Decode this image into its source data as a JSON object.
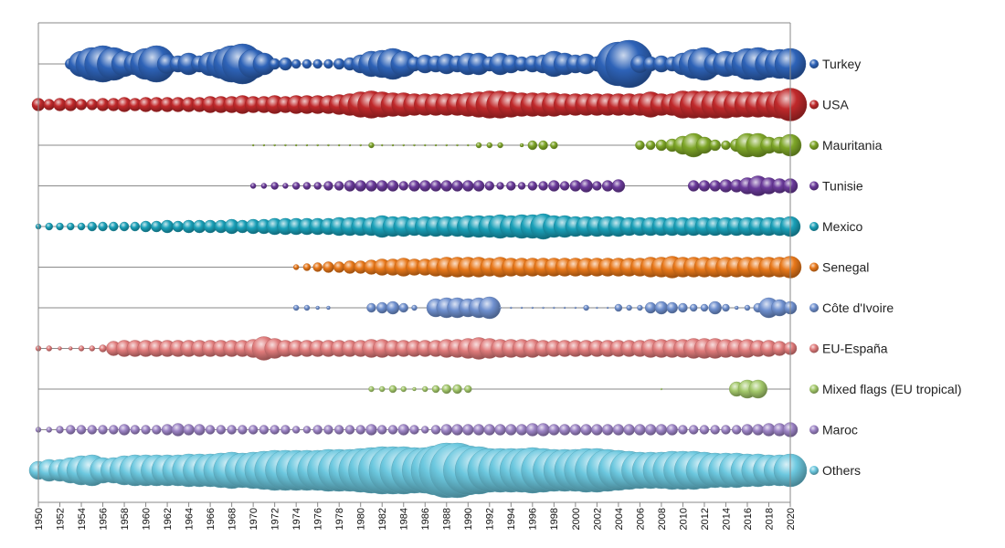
{
  "chart_data": {
    "type": "bubble-strip",
    "title": "",
    "xlabel": "",
    "ylabel": "",
    "x_range": [
      1950,
      2020
    ],
    "x_ticks": [
      "1950",
      "1952",
      "1954",
      "1956",
      "1958",
      "1960",
      "1962",
      "1964",
      "1966",
      "1968",
      "1970",
      "1972",
      "1974",
      "1976",
      "1978",
      "1980",
      "1982",
      "1984",
      "1986",
      "1988",
      "1990",
      "1992",
      "1994",
      "1996",
      "1998",
      "2000",
      "2002",
      "2004",
      "2006",
      "2008",
      "2010",
      "2012",
      "2014",
      "2016",
      "2018",
      "2020"
    ],
    "legend_position": "right",
    "grid": false,
    "series": [
      {
        "name": "Turkey",
        "color": "#2e63b8",
        "start": 1953,
        "segments": [
          [
            1950,
            1952,
            0
          ],
          [
            1953,
            1953,
            6
          ],
          [
            1954,
            1954,
            14
          ],
          [
            1955,
            1955,
            18
          ],
          [
            1956,
            1956,
            20
          ],
          [
            1957,
            1957,
            18
          ],
          [
            1958,
            1958,
            14
          ],
          [
            1959,
            1959,
            12
          ],
          [
            1960,
            1960,
            17
          ],
          [
            1961,
            1961,
            20
          ],
          [
            1962,
            1962,
            11
          ],
          [
            1963,
            1963,
            9
          ],
          [
            1964,
            1964,
            12
          ],
          [
            1965,
            1965,
            9
          ],
          [
            1966,
            1966,
            13
          ],
          [
            1967,
            1967,
            16
          ],
          [
            1968,
            1968,
            20
          ],
          [
            1969,
            1969,
            22
          ],
          [
            1970,
            1970,
            16
          ],
          [
            1971,
            1971,
            12
          ],
          [
            1972,
            1972,
            6
          ],
          [
            1973,
            1973,
            7
          ],
          [
            1974,
            1974,
            5
          ],
          [
            1975,
            1975,
            5
          ],
          [
            1976,
            1976,
            5
          ],
          [
            1977,
            1977,
            5
          ],
          [
            1978,
            1978,
            6
          ],
          [
            1979,
            1979,
            7
          ],
          [
            1980,
            1980,
            10
          ],
          [
            1981,
            1981,
            14
          ],
          [
            1982,
            1982,
            15
          ],
          [
            1983,
            1983,
            17
          ],
          [
            1984,
            1984,
            14
          ],
          [
            1985,
            1985,
            8
          ],
          [
            1986,
            1986,
            10
          ],
          [
            1987,
            1987,
            9
          ],
          [
            1988,
            1988,
            11
          ],
          [
            1989,
            1989,
            9
          ],
          [
            1990,
            1990,
            12
          ],
          [
            1991,
            1991,
            12
          ],
          [
            1992,
            1992,
            8
          ],
          [
            1993,
            1993,
            12
          ],
          [
            1994,
            1994,
            10
          ],
          [
            1995,
            1995,
            8
          ],
          [
            1996,
            1996,
            9
          ],
          [
            1997,
            1997,
            10
          ],
          [
            1998,
            1998,
            14
          ],
          [
            1999,
            1999,
            12
          ],
          [
            2000,
            2000,
            10
          ],
          [
            2001,
            2001,
            11
          ],
          [
            2002,
            2002,
            8
          ],
          [
            2003,
            2003,
            14
          ],
          [
            2004,
            2004,
            24
          ],
          [
            2005,
            2005,
            26
          ],
          [
            2006,
            2006,
            10
          ],
          [
            2007,
            2007,
            8
          ],
          [
            2008,
            2008,
            9
          ],
          [
            2009,
            2009,
            8
          ],
          [
            2010,
            2010,
            12
          ],
          [
            2011,
            2011,
            16
          ],
          [
            2012,
            2012,
            18
          ],
          [
            2013,
            2013,
            12
          ],
          [
            2014,
            2014,
            14
          ],
          [
            2015,
            2015,
            13
          ],
          [
            2016,
            2016,
            17
          ],
          [
            2017,
            2017,
            18
          ],
          [
            2018,
            2018,
            15
          ],
          [
            2019,
            2019,
            16
          ],
          [
            2020,
            2020,
            17
          ]
        ]
      },
      {
        "name": "USA",
        "color": "#c0292b",
        "start": 1950,
        "sizes": {
          "1950": 7,
          "1951": 6,
          "1952": 7,
          "1953": 7,
          "1954": 6,
          "1955": 6,
          "1956": 7,
          "1957": 7,
          "1958": 8,
          "1959": 7,
          "1960": 8,
          "1961": 8,
          "1962": 8,
          "1963": 8,
          "1964": 8,
          "1965": 8,
          "1966": 9,
          "1967": 9,
          "1968": 9,
          "1969": 10,
          "1970": 9,
          "1971": 9,
          "1972": 10,
          "1973": 9,
          "1974": 10,
          "1975": 10,
          "1976": 10,
          "1977": 10,
          "1978": 11,
          "1979": 12,
          "1980": 14,
          "1981": 15,
          "1982": 14,
          "1983": 13,
          "1984": 13,
          "1985": 12,
          "1986": 12,
          "1987": 12,
          "1988": 12,
          "1989": 12,
          "1990": 13,
          "1991": 14,
          "1992": 15,
          "1993": 15,
          "1994": 14,
          "1995": 13,
          "1996": 13,
          "1997": 13,
          "1998": 13,
          "1999": 12,
          "2000": 12,
          "2001": 12,
          "2002": 12,
          "2003": 12,
          "2004": 12,
          "2005": 12,
          "2006": 12,
          "2007": 14,
          "2008": 12,
          "2009": 12,
          "2010": 15,
          "2011": 15,
          "2012": 15,
          "2013": 15,
          "2014": 15,
          "2015": 14,
          "2016": 14,
          "2017": 14,
          "2018": 14,
          "2019": 15,
          "2020": 18
        }
      },
      {
        "name": "Mauritania",
        "color": "#7ea628",
        "start": 1970,
        "sizes": {
          "1970": 1,
          "1971": 1,
          "1972": 1,
          "1973": 1,
          "1974": 1,
          "1975": 1,
          "1976": 1,
          "1977": 1,
          "1978": 1,
          "1979": 1,
          "1980": 1,
          "1981": 3,
          "1982": 1,
          "1983": 1,
          "1984": 1,
          "1985": 1,
          "1986": 1,
          "1987": 1,
          "1988": 1,
          "1989": 1,
          "1990": 1,
          "1991": 3,
          "1992": 3,
          "1993": 3,
          "1994": 0,
          "1995": 2,
          "1996": 5,
          "1997": 5,
          "1998": 4,
          "1999": 0,
          "2000": 0,
          "2001": 0,
          "2002": 0,
          "2003": 0,
          "2004": 0,
          "2005": 0,
          "2006": 5,
          "2007": 5,
          "2008": 6,
          "2009": 7,
          "2010": 10,
          "2011": 13,
          "2012": 9,
          "2013": 6,
          "2014": 5,
          "2015": 7,
          "2016": 13,
          "2017": 13,
          "2018": 9,
          "2019": 9,
          "2020": 12
        }
      },
      {
        "name": "Tunisie",
        "color": "#6a3a9a",
        "start": 1970,
        "sizes": {
          "1970": 3,
          "1971": 3,
          "1972": 4,
          "1973": 3,
          "1974": 4,
          "1975": 4,
          "1976": 4,
          "1977": 5,
          "1978": 5,
          "1979": 6,
          "1980": 6,
          "1981": 6,
          "1982": 6,
          "1983": 6,
          "1984": 5,
          "1985": 6,
          "1986": 6,
          "1987": 6,
          "1988": 6,
          "1989": 6,
          "1990": 6,
          "1991": 6,
          "1992": 5,
          "1993": 4,
          "1994": 5,
          "1995": 4,
          "1996": 5,
          "1997": 5,
          "1998": 6,
          "1999": 5,
          "2000": 6,
          "2001": 7,
          "2002": 5,
          "2003": 6,
          "2004": 7,
          "2005": 0,
          "2006": 0,
          "2007": 0,
          "2008": 0,
          "2009": 0,
          "2010": 0,
          "2011": 6,
          "2012": 6,
          "2013": 6,
          "2014": 7,
          "2015": 7,
          "2016": 9,
          "2017": 11,
          "2018": 9,
          "2019": 8,
          "2020": 8
        }
      },
      {
        "name": "Mexico",
        "color": "#1aa0b8",
        "start": 1950,
        "sizes": {
          "1950": 3,
          "1951": 4,
          "1952": 4,
          "1953": 4,
          "1954": 4,
          "1955": 5,
          "1956": 5,
          "1957": 5,
          "1958": 5,
          "1959": 5,
          "1960": 6,
          "1961": 6,
          "1962": 7,
          "1963": 6,
          "1964": 7,
          "1965": 7,
          "1966": 7,
          "1967": 7,
          "1968": 8,
          "1969": 7,
          "1970": 8,
          "1971": 8,
          "1972": 9,
          "1973": 9,
          "1974": 9,
          "1975": 9,
          "1976": 9,
          "1977": 9,
          "1978": 10,
          "1979": 10,
          "1980": 10,
          "1981": 10,
          "1982": 12,
          "1983": 11,
          "1984": 11,
          "1985": 10,
          "1986": 11,
          "1987": 11,
          "1988": 11,
          "1989": 11,
          "1990": 12,
          "1991": 12,
          "1992": 12,
          "1993": 13,
          "1994": 12,
          "1995": 13,
          "1996": 13,
          "1997": 14,
          "1998": 12,
          "1999": 12,
          "2000": 11,
          "2001": 11,
          "2002": 11,
          "2003": 11,
          "2004": 11,
          "2005": 10,
          "2006": 10,
          "2007": 10,
          "2008": 10,
          "2009": 10,
          "2010": 10,
          "2011": 10,
          "2012": 10,
          "2013": 10,
          "2014": 10,
          "2015": 10,
          "2016": 10,
          "2017": 10,
          "2018": 10,
          "2019": 10,
          "2020": 11
        }
      },
      {
        "name": "Senegal",
        "color": "#e8781a",
        "start": 1974,
        "sizes": {
          "1974": 3,
          "1975": 4,
          "1976": 5,
          "1977": 6,
          "1978": 6,
          "1979": 7,
          "1980": 7,
          "1981": 8,
          "1982": 9,
          "1983": 9,
          "1984": 10,
          "1985": 9,
          "1986": 9,
          "1987": 10,
          "1988": 11,
          "1989": 11,
          "1990": 11,
          "1991": 11,
          "1992": 10,
          "1993": 11,
          "1994": 10,
          "1995": 10,
          "1996": 10,
          "1997": 10,
          "1998": 10,
          "1999": 10,
          "2000": 10,
          "2001": 10,
          "2002": 10,
          "2003": 10,
          "2004": 10,
          "2005": 10,
          "2006": 10,
          "2007": 11,
          "2008": 11,
          "2009": 12,
          "2010": 11,
          "2011": 11,
          "2012": 11,
          "2013": 11,
          "2014": 11,
          "2015": 11,
          "2016": 11,
          "2017": 11,
          "2018": 11,
          "2019": 11,
          "2020": 12
        }
      },
      {
        "name": "Côte d'Ivoire",
        "color": "#6f90cf",
        "start": 1974,
        "sizes": {
          "1974": 3,
          "1975": 3,
          "1976": 2,
          "1977": 2,
          "1978": 0,
          "1979": 0,
          "1980": 0,
          "1981": 5,
          "1982": 6,
          "1983": 7,
          "1984": 5,
          "1985": 3,
          "1986": 0,
          "1987": 10,
          "1988": 11,
          "1989": 11,
          "1990": 10,
          "1991": 11,
          "1992": 12,
          "1993": 1,
          "1994": 1,
          "1995": 1,
          "1996": 1,
          "1997": 1,
          "1998": 1,
          "1999": 1,
          "2000": 1,
          "2001": 3,
          "2002": 1,
          "2003": 1,
          "2004": 4,
          "2005": 3,
          "2006": 3,
          "2007": 6,
          "2008": 7,
          "2009": 6,
          "2010": 5,
          "2011": 4,
          "2012": 4,
          "2013": 7,
          "2014": 4,
          "2015": 2,
          "2016": 3,
          "2017": 5,
          "2018": 11,
          "2019": 9,
          "2020": 7
        }
      },
      {
        "name": "EU-España",
        "color": "#e07b7b",
        "start": 1950,
        "sizes": {
          "1950": 3,
          "1951": 3,
          "1952": 2,
          "1953": 2,
          "1954": 3,
          "1955": 3,
          "1956": 4,
          "1957": 8,
          "1958": 9,
          "1959": 9,
          "1960": 9,
          "1961": 9,
          "1962": 9,
          "1963": 9,
          "1964": 9,
          "1965": 9,
          "1966": 9,
          "1967": 9,
          "1968": 9,
          "1969": 9,
          "1970": 10,
          "1971": 13,
          "1972": 11,
          "1973": 9,
          "1974": 9,
          "1975": 9,
          "1976": 9,
          "1977": 9,
          "1978": 9,
          "1979": 9,
          "1980": 9,
          "1981": 10,
          "1982": 10,
          "1983": 9,
          "1984": 9,
          "1985": 9,
          "1986": 9,
          "1987": 9,
          "1988": 10,
          "1989": 10,
          "1990": 11,
          "1991": 12,
          "1992": 11,
          "1993": 10,
          "1994": 10,
          "1995": 10,
          "1996": 10,
          "1997": 9,
          "1998": 9,
          "1999": 9,
          "2000": 9,
          "2001": 9,
          "2002": 9,
          "2003": 9,
          "2004": 9,
          "2005": 9,
          "2006": 9,
          "2007": 10,
          "2008": 10,
          "2009": 10,
          "2010": 10,
          "2011": 11,
          "2012": 11,
          "2013": 11,
          "2014": 10,
          "2015": 10,
          "2016": 10,
          "2017": 9,
          "2018": 9,
          "2019": 8,
          "2020": 7
        }
      },
      {
        "name": "Mixed flags (EU tropical)",
        "color": "#a3c86a",
        "start": 1981,
        "sizes": {
          "1981": 3,
          "1982": 3,
          "1983": 4,
          "1984": 3,
          "1985": 2,
          "1986": 3,
          "1987": 4,
          "1988": 5,
          "1989": 5,
          "1990": 4,
          "2008": 1,
          "2015": 8,
          "2016": 10,
          "2017": 10
        }
      },
      {
        "name": "Maroc",
        "color": "#9b82c4",
        "start": 1950,
        "sizes": {
          "1950": 3,
          "1951": 3,
          "1952": 4,
          "1953": 5,
          "1954": 5,
          "1955": 5,
          "1956": 5,
          "1957": 5,
          "1958": 6,
          "1959": 5,
          "1960": 5,
          "1961": 5,
          "1962": 6,
          "1963": 7,
          "1964": 6,
          "1965": 6,
          "1966": 5,
          "1967": 5,
          "1968": 5,
          "1969": 5,
          "1970": 5,
          "1971": 5,
          "1972": 5,
          "1973": 5,
          "1974": 4,
          "1975": 4,
          "1976": 5,
          "1977": 5,
          "1978": 5,
          "1979": 5,
          "1980": 5,
          "1981": 6,
          "1982": 5,
          "1983": 5,
          "1984": 6,
          "1985": 5,
          "1986": 4,
          "1987": 5,
          "1988": 6,
          "1989": 6,
          "1990": 6,
          "1991": 6,
          "1992": 6,
          "1993": 6,
          "1994": 6,
          "1995": 6,
          "1996": 7,
          "1997": 7,
          "1998": 6,
          "1999": 6,
          "2000": 6,
          "2001": 6,
          "2002": 6,
          "2003": 6,
          "2004": 6,
          "2005": 6,
          "2006": 6,
          "2007": 6,
          "2008": 6,
          "2009": 6,
          "2010": 5,
          "2011": 5,
          "2012": 5,
          "2013": 5,
          "2014": 5,
          "2015": 5,
          "2016": 6,
          "2017": 6,
          "2018": 7,
          "2019": 7,
          "2020": 8
        }
      },
      {
        "name": "Others",
        "color": "#6cc8df",
        "start": 1950,
        "sizes": {
          "1950": 10,
          "1951": 12,
          "1952": 12,
          "1953": 14,
          "1954": 16,
          "1955": 17,
          "1956": 14,
          "1957": 14,
          "1958": 16,
          "1959": 17,
          "1960": 17,
          "1961": 17,
          "1962": 17,
          "1963": 17,
          "1964": 18,
          "1965": 18,
          "1966": 18,
          "1967": 19,
          "1968": 20,
          "1969": 19,
          "1970": 20,
          "1971": 21,
          "1972": 22,
          "1973": 22,
          "1974": 22,
          "1975": 22,
          "1976": 22,
          "1977": 23,
          "1978": 23,
          "1979": 23,
          "1980": 24,
          "1981": 25,
          "1982": 26,
          "1983": 26,
          "1984": 26,
          "1985": 25,
          "1986": 25,
          "1987": 27,
          "1988": 30,
          "1989": 30,
          "1990": 27,
          "1991": 26,
          "1992": 24,
          "1993": 24,
          "1994": 24,
          "1995": 24,
          "1996": 25,
          "1997": 24,
          "1998": 23,
          "1999": 23,
          "2000": 23,
          "2001": 24,
          "2002": 24,
          "2003": 23,
          "2004": 22,
          "2005": 21,
          "2006": 20,
          "2007": 20,
          "2008": 20,
          "2009": 21,
          "2010": 21,
          "2011": 21,
          "2012": 20,
          "2013": 19,
          "2014": 19,
          "2015": 19,
          "2016": 18,
          "2017": 18,
          "2018": 17,
          "2019": 17,
          "2020": 18
        }
      }
    ]
  }
}
